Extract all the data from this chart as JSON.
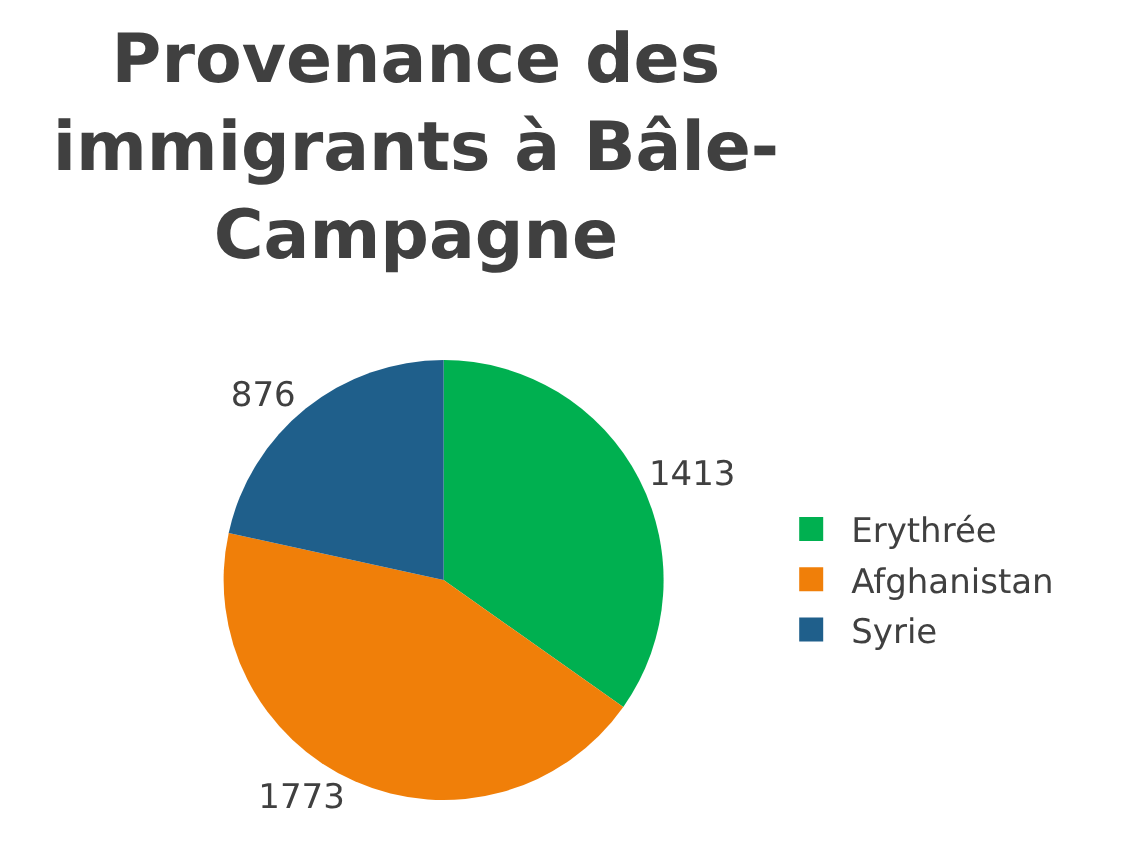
{
  "chart_data": {
    "type": "pie",
    "title": "Provenance des immigrants à Bâle-Campagne",
    "categories": [
      "Erythrée",
      "Afghanistan",
      "Syrie"
    ],
    "values": [
      1413,
      1773,
      876
    ],
    "colors": [
      "#00b050",
      "#f07f09",
      "#1f5f8b"
    ],
    "data_labels": true,
    "legend": "right"
  }
}
